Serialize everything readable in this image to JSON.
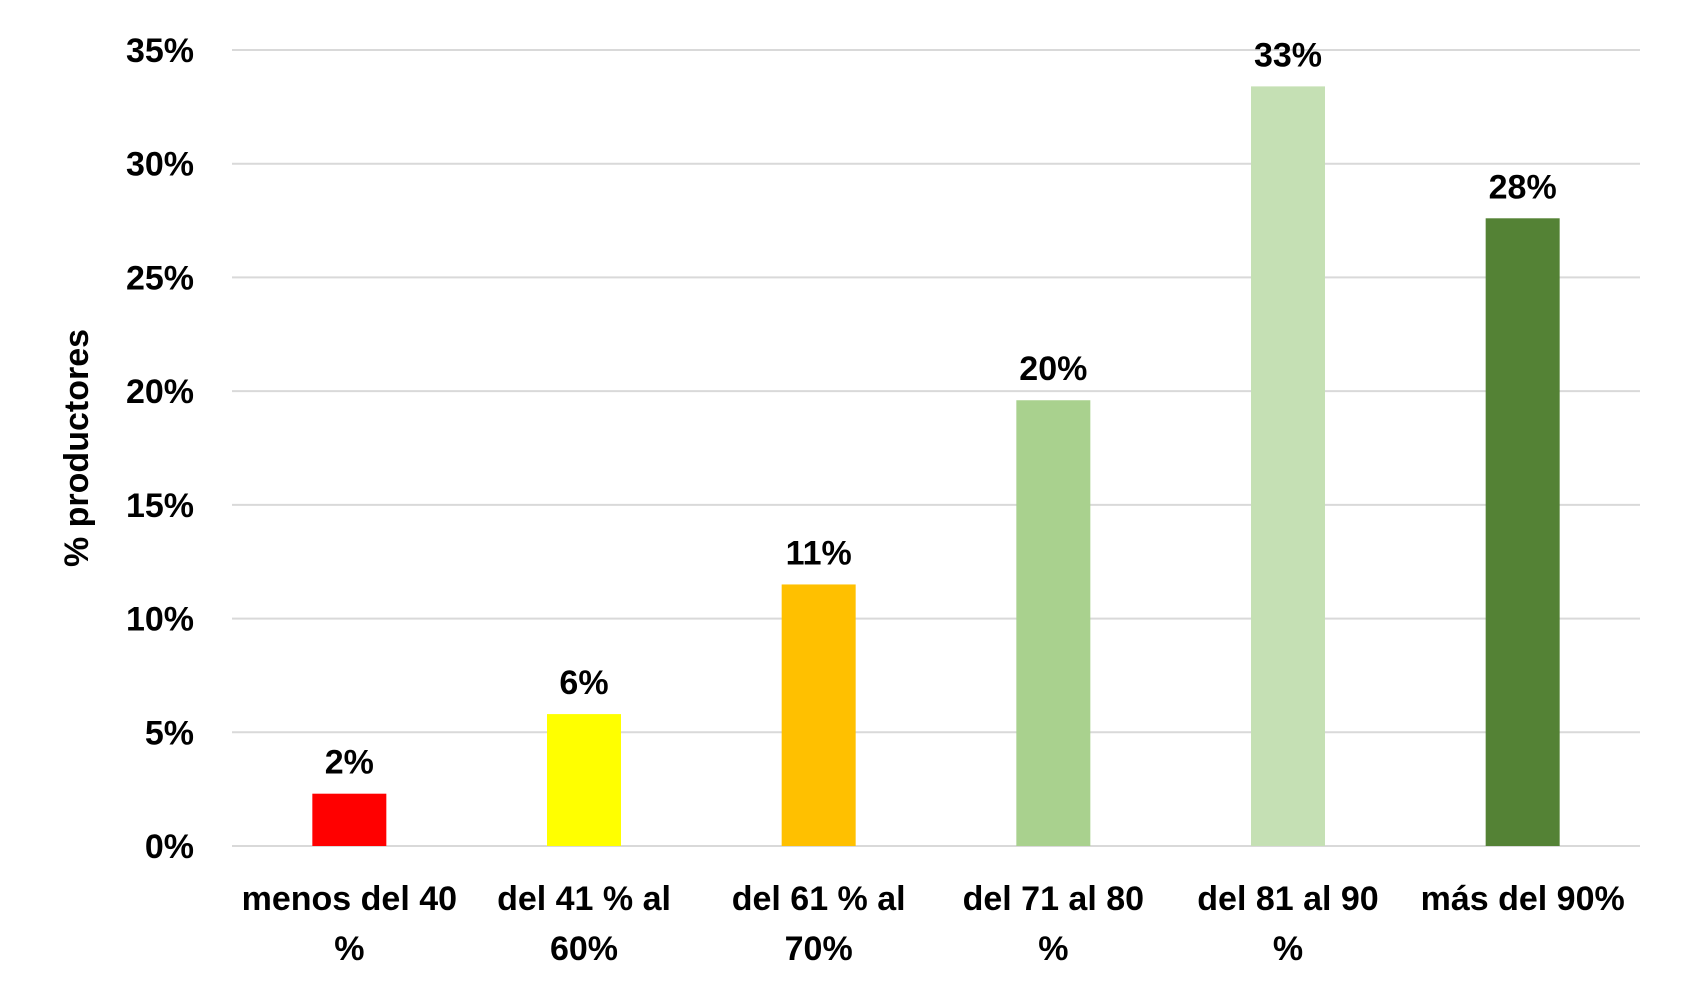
{
  "chart_data": {
    "type": "bar",
    "title": "",
    "xlabel": "",
    "ylabel": "% productores",
    "ylim": [
      0,
      35
    ],
    "ytick_values": [
      0,
      5,
      10,
      15,
      20,
      25,
      30,
      35
    ],
    "ytick_labels": [
      "0%",
      "5%",
      "10%",
      "15%",
      "20%",
      "25%",
      "30%",
      "35%"
    ],
    "grid": true,
    "legend": "none",
    "categories": [
      [
        "menos del 40",
        "%"
      ],
      [
        "del 41 % al",
        "60%"
      ],
      [
        "del 61 % al",
        "70%"
      ],
      [
        "del 71 al 80",
        "%"
      ],
      [
        "del 81 al 90",
        "%"
      ],
      [
        "más del 90%"
      ]
    ],
    "values": [
      2.3,
      5.8,
      11.5,
      19.6,
      33.4,
      27.6
    ],
    "data_labels": [
      "2%",
      "6%",
      "11%",
      "20%",
      "33%",
      "28%"
    ],
    "colors": [
      "#ff0000",
      "#ffff00",
      "#ffc000",
      "#a9d18e",
      "#c5e0b4",
      "#548235"
    ]
  }
}
